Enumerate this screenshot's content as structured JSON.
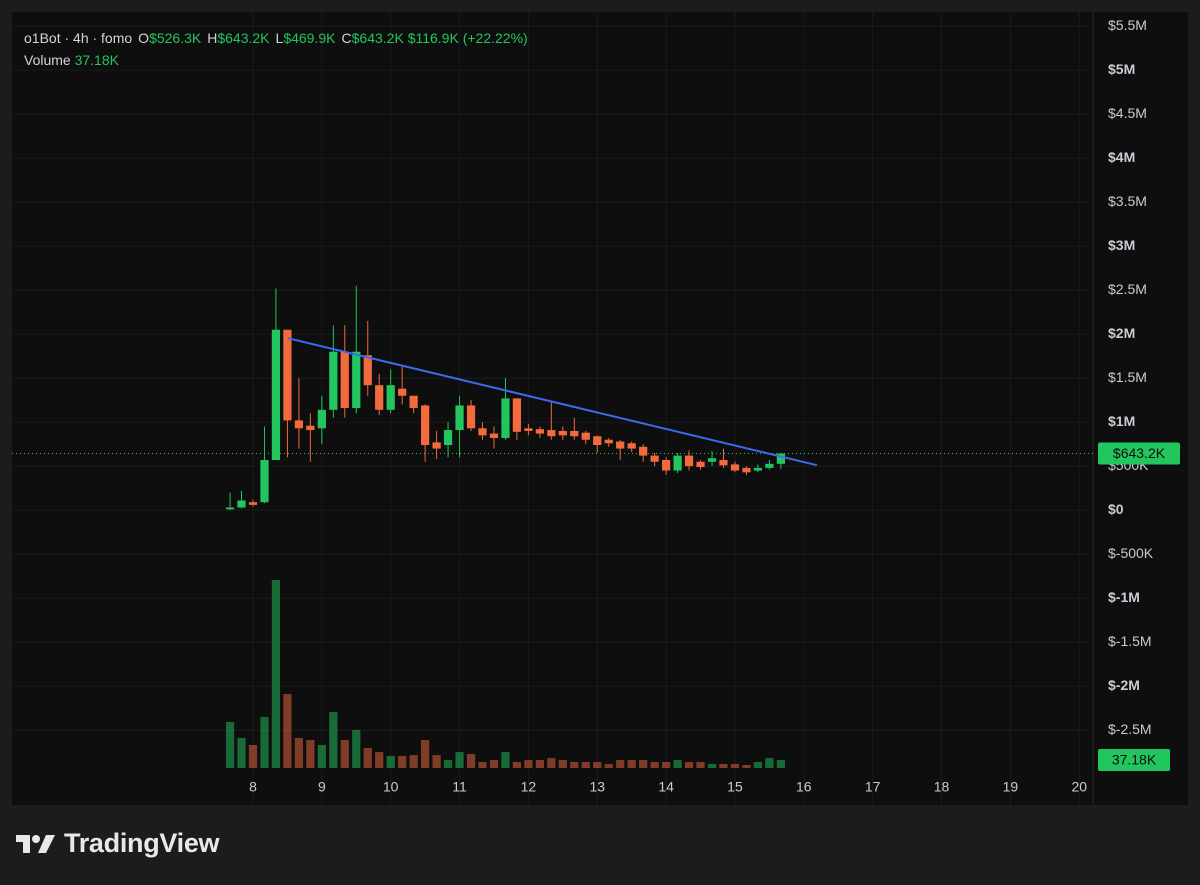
{
  "chart_data": {
    "type": "candlestick",
    "legend": {
      "symbol": "o1Bot · 4h · fomo",
      "items": [
        {
          "key": "O",
          "value": "$526.3K"
        },
        {
          "key": "H",
          "value": "$643.2K"
        },
        {
          "key": "L",
          "value": "$469.9K"
        },
        {
          "key": "C",
          "value": "$643.2K"
        }
      ],
      "change": "$116.9K (+22.22%)",
      "volume_key": "Volume",
      "volume": "37.18K"
    },
    "x": [
      7.667,
      7.833,
      8,
      8.167,
      8.333,
      8.5,
      8.667,
      8.833,
      9,
      9.167,
      9.333,
      9.5,
      9.667,
      9.833,
      10,
      10.167,
      10.333,
      10.5,
      10.667,
      10.833,
      11,
      11.167,
      11.333,
      11.5,
      11.667,
      11.833,
      12,
      12.167,
      12.333,
      12.5,
      12.667,
      12.833,
      13,
      13.167,
      13.333,
      13.5,
      13.667,
      13.833,
      14,
      14.167,
      14.333,
      14.5,
      14.667,
      14.833,
      15,
      15.167,
      15.333,
      15.5,
      15.667
    ],
    "open": [
      10000,
      30000,
      90000,
      90000,
      570000,
      2050000,
      1020000,
      960000,
      930000,
      1140000,
      1800000,
      1160000,
      1760000,
      1420000,
      1140000,
      1380000,
      1300000,
      1190000,
      770000,
      740000,
      910000,
      1190000,
      930000,
      870000,
      820000,
      1270000,
      930000,
      920000,
      910000,
      900000,
      900000,
      880000,
      840000,
      800000,
      780000,
      760000,
      720000,
      620000,
      570000,
      450000,
      620000,
      550000,
      550000,
      570000,
      520000,
      480000,
      450000,
      480000,
      526300
    ],
    "high": [
      200000,
      220000,
      120000,
      950000,
      2520000,
      2050000,
      1500000,
      1100000,
      1300000,
      2100000,
      2100000,
      2550000,
      2150000,
      1550000,
      1600000,
      1630000,
      1300000,
      1200000,
      900000,
      1000000,
      1300000,
      1250000,
      1000000,
      950000,
      1500000,
      1270000,
      980000,
      950000,
      1230000,
      950000,
      1050000,
      900000,
      850000,
      820000,
      800000,
      780000,
      750000,
      650000,
      600000,
      650000,
      680000,
      570000,
      670000,
      700000,
      550000,
      500000,
      520000,
      570000,
      643200
    ],
    "low": [
      0,
      20000,
      40000,
      80000,
      570000,
      600000,
      700000,
      550000,
      750000,
      1050000,
      1050000,
      1100000,
      1300000,
      1080000,
      1100000,
      1200000,
      1100000,
      550000,
      580000,
      600000,
      600000,
      900000,
      800000,
      700000,
      800000,
      800000,
      850000,
      820000,
      800000,
      800000,
      800000,
      750000,
      650000,
      720000,
      570000,
      660000,
      550000,
      500000,
      400000,
      420000,
      450000,
      460000,
      500000,
      480000,
      430000,
      400000,
      430000,
      460000,
      469900
    ],
    "close": [
      30000,
      110000,
      60000,
      570000,
      2050000,
      1020000,
      930000,
      910000,
      1140000,
      1800000,
      1160000,
      1800000,
      1420000,
      1140000,
      1420000,
      1300000,
      1160000,
      740000,
      700000,
      910000,
      1190000,
      930000,
      850000,
      820000,
      1270000,
      890000,
      900000,
      870000,
      840000,
      850000,
      840000,
      800000,
      740000,
      760000,
      700000,
      700000,
      620000,
      550000,
      450000,
      620000,
      500000,
      490000,
      590000,
      510000,
      450000,
      430000,
      480000,
      526300,
      643200
    ],
    "volume": [
      214000,
      140000,
      107000,
      237000,
      874000,
      344000,
      140000,
      130000,
      107000,
      260000,
      130000,
      177000,
      93000,
      74000,
      56000,
      56000,
      60000,
      130000,
      60000,
      37000,
      74000,
      65000,
      28000,
      37000,
      74000,
      28000,
      37000,
      37000,
      46000,
      37000,
      28000,
      28000,
      28000,
      19000,
      37000,
      37000,
      37000,
      28000,
      28000,
      37000,
      28000,
      28000,
      19000,
      19000,
      19000,
      14000,
      28000,
      46000,
      37180
    ],
    "up_color": "#22c55e",
    "down_color": "#f26a3d",
    "xlim": [
      4.5,
      20.2
    ],
    "xticks": [
      8,
      9,
      10,
      11,
      12,
      13,
      14,
      15,
      16,
      17,
      18,
      19,
      20
    ],
    "ylim": [
      -3350000,
      5660000
    ],
    "yticks": [
      {
        "value": 5500000,
        "label": "$5.5M"
      },
      {
        "value": 5000000,
        "label": "$5M"
      },
      {
        "value": 4500000,
        "label": "$4.5M"
      },
      {
        "value": 4000000,
        "label": "$4M"
      },
      {
        "value": 3500000,
        "label": "$3.5M"
      },
      {
        "value": 3000000,
        "label": "$3M"
      },
      {
        "value": 2500000,
        "label": "$2.5M"
      },
      {
        "value": 2000000,
        "label": "$2M"
      },
      {
        "value": 1500000,
        "label": "$1.5M"
      },
      {
        "value": 1000000,
        "label": "$1M"
      },
      {
        "value": 500000,
        "label": "$500K"
      },
      {
        "value": 0,
        "label": "$0"
      },
      {
        "value": -500000,
        "label": "$-500K"
      },
      {
        "value": -1000000,
        "label": "$-1M"
      },
      {
        "value": -1500000,
        "label": "$-1.5M"
      },
      {
        "value": -2000000,
        "label": "$-2M"
      },
      {
        "value": -2500000,
        "label": "$-2.5M"
      }
    ],
    "grid": true,
    "trendline": {
      "x": [
        8.5,
        16.19
      ],
      "values": [
        1955000,
        511000
      ],
      "color": "#3d6bf0"
    },
    "price_line": {
      "value": 643200,
      "label": "$643.2K"
    },
    "volume_label": {
      "value": 37180,
      "label": "37.18K"
    }
  },
  "branding": "TradingView"
}
